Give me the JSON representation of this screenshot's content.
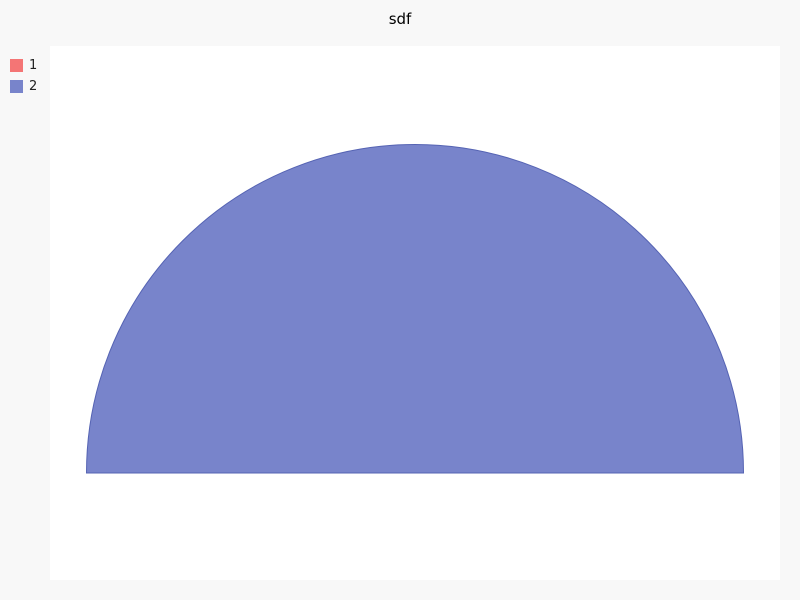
{
  "chart_data": {
    "type": "pie",
    "title": "sdf",
    "legend_position": "top-left",
    "series": [
      {
        "name": "1",
        "value": 0,
        "color": "#f47575"
      },
      {
        "name": "2",
        "value": 100,
        "color": "#7884cb"
      }
    ],
    "start_angle_deg": 180,
    "total_angle_deg": 180
  }
}
